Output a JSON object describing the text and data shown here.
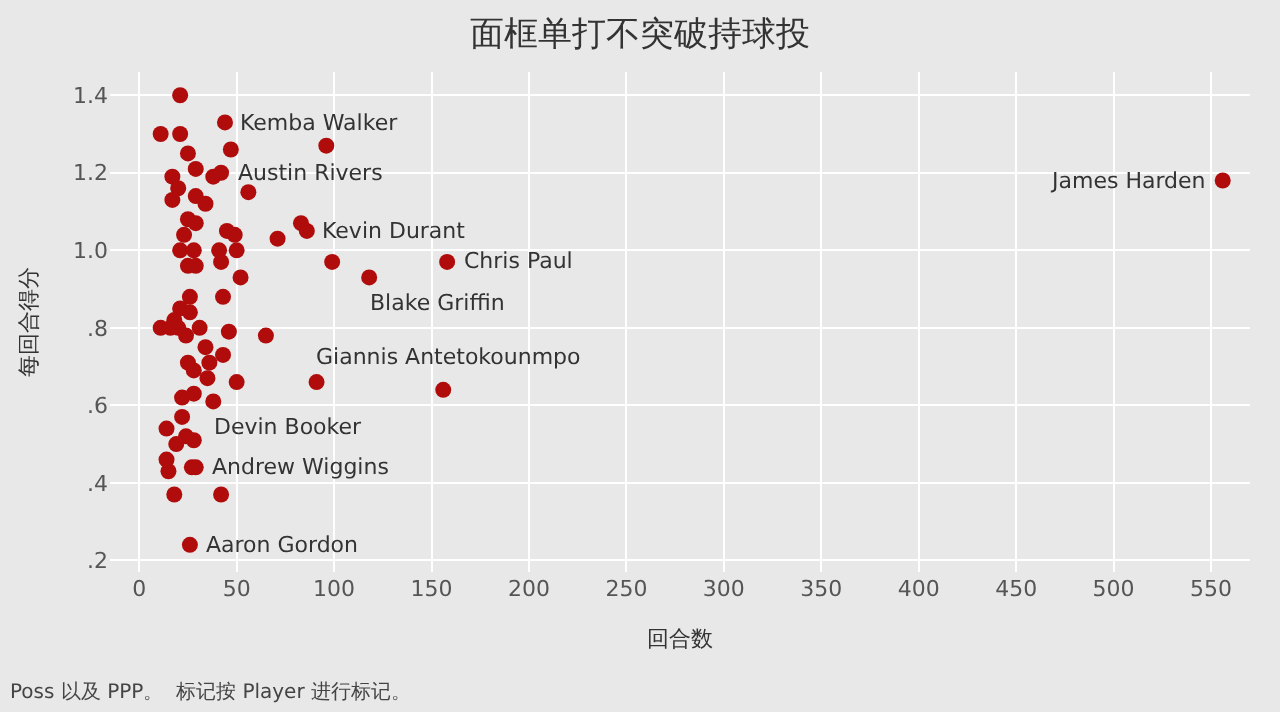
{
  "chart_data": {
    "type": "scatter",
    "title": "面框单打不突破持球投",
    "xlabel": "回合数",
    "ylabel": "每回合得分",
    "x": [
      21,
      44,
      11,
      21,
      96,
      47,
      25,
      29,
      38,
      42,
      17,
      20,
      56,
      29,
      17,
      34,
      25,
      29,
      83,
      86,
      45,
      49,
      23,
      71,
      21,
      28,
      41,
      50,
      42,
      25,
      29,
      99,
      52,
      26,
      43,
      21,
      26,
      18,
      118,
      158,
      65,
      91,
      156,
      11,
      16,
      20,
      31,
      46,
      24,
      34,
      43,
      25,
      36,
      28,
      35,
      50,
      22,
      28,
      38,
      22,
      14,
      24,
      28,
      19,
      14,
      27,
      29,
      15,
      18,
      42,
      26,
      556
    ],
    "values": [
      1.4,
      1.33,
      1.3,
      1.3,
      1.27,
      1.26,
      1.25,
      1.21,
      1.19,
      1.2,
      1.19,
      1.16,
      1.15,
      1.14,
      1.13,
      1.12,
      1.08,
      1.07,
      1.07,
      1.05,
      1.05,
      1.04,
      1.04,
      1.03,
      1.0,
      1.0,
      1.0,
      1.0,
      0.97,
      0.96,
      0.96,
      0.97,
      0.93,
      0.88,
      0.88,
      0.85,
      0.84,
      0.82,
      0.93,
      0.97,
      0.78,
      0.66,
      0.64,
      0.8,
      0.8,
      0.8,
      0.8,
      0.79,
      0.78,
      0.75,
      0.73,
      0.71,
      0.71,
      0.69,
      0.67,
      0.66,
      0.62,
      0.63,
      0.61,
      0.57,
      0.54,
      0.52,
      0.51,
      0.5,
      0.46,
      0.44,
      0.44,
      0.43,
      0.37,
      0.37,
      0.24,
      1.18
    ],
    "color": "#b00c0c",
    "marker": "circle",
    "xlim": [
      -15,
      570
    ],
    "ylim": [
      0.17,
      1.46
    ],
    "xticks": [
      0,
      50,
      100,
      150,
      200,
      250,
      300,
      350,
      400,
      450,
      500,
      550
    ],
    "yticks": [
      {
        "value": 0.2,
        "label": ".2"
      },
      {
        "value": 0.4,
        "label": ".4"
      },
      {
        "value": 0.6,
        "label": ".6"
      },
      {
        "value": 0.8,
        "label": ".8"
      },
      {
        "value": 1.0,
        "label": "1.0"
      },
      {
        "value": 1.2,
        "label": "1.2"
      },
      {
        "value": 1.4,
        "label": "1.4"
      }
    ],
    "grid": true,
    "annotations": [
      {
        "text": "Kemba Walker",
        "x": 44,
        "y": 1.33
      },
      {
        "text": "Austin Rivers",
        "x": 42,
        "y": 1.2
      },
      {
        "text": "Kevin Durant",
        "x": 86,
        "y": 1.05
      },
      {
        "text": "Blake Griffin",
        "x": 118,
        "y": 0.93
      },
      {
        "text": "Chris Paul",
        "x": 158,
        "y": 0.97
      },
      {
        "text": "Giannis Antetokounmpo",
        "x": 91,
        "y": 0.66
      },
      {
        "text": "Devin Booker",
        "x": 38,
        "y": 0.61
      },
      {
        "text": "Andrew Wiggins",
        "x": 29,
        "y": 0.44
      },
      {
        "text": "Aaron Gordon",
        "x": 26,
        "y": 0.24
      },
      {
        "text": "James Harden",
        "x": 556,
        "y": 1.18
      },
      "Poss 以及 PPP。  标记按 Player 进行标记。"
    ]
  }
}
